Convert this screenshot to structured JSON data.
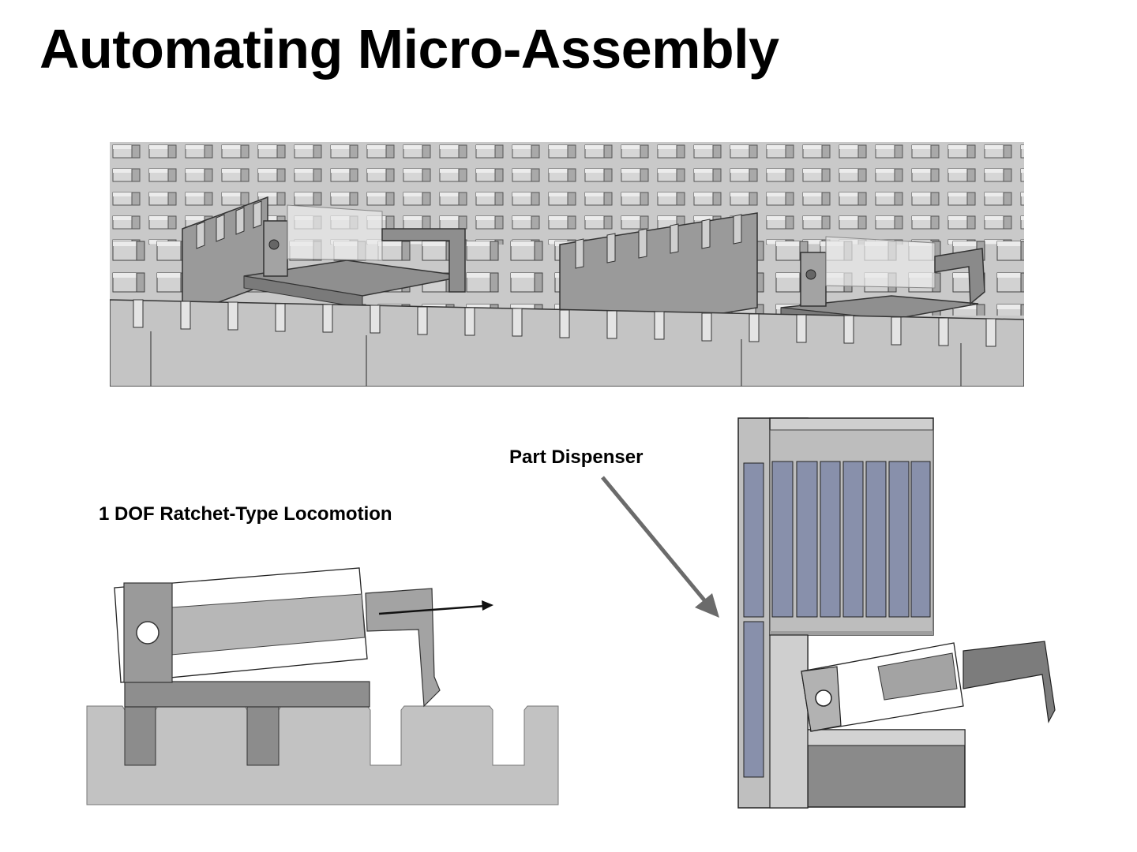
{
  "slide": {
    "title": "Automating Micro-Assembly"
  },
  "labels": {
    "locomotion": "1 DOF Ratchet-Type Locomotion",
    "dispenser": "Part Dispenser"
  },
  "colors": {
    "background": "#ffffff",
    "text": "#000000",
    "substrate_gray": "#c8c8c8",
    "post_gray": "#bdbdbd",
    "dark_gray": "#8a8a8a",
    "mid_gray": "#a8a8a8",
    "part_blue": "#8890ab",
    "arrow_gray": "#707070"
  }
}
